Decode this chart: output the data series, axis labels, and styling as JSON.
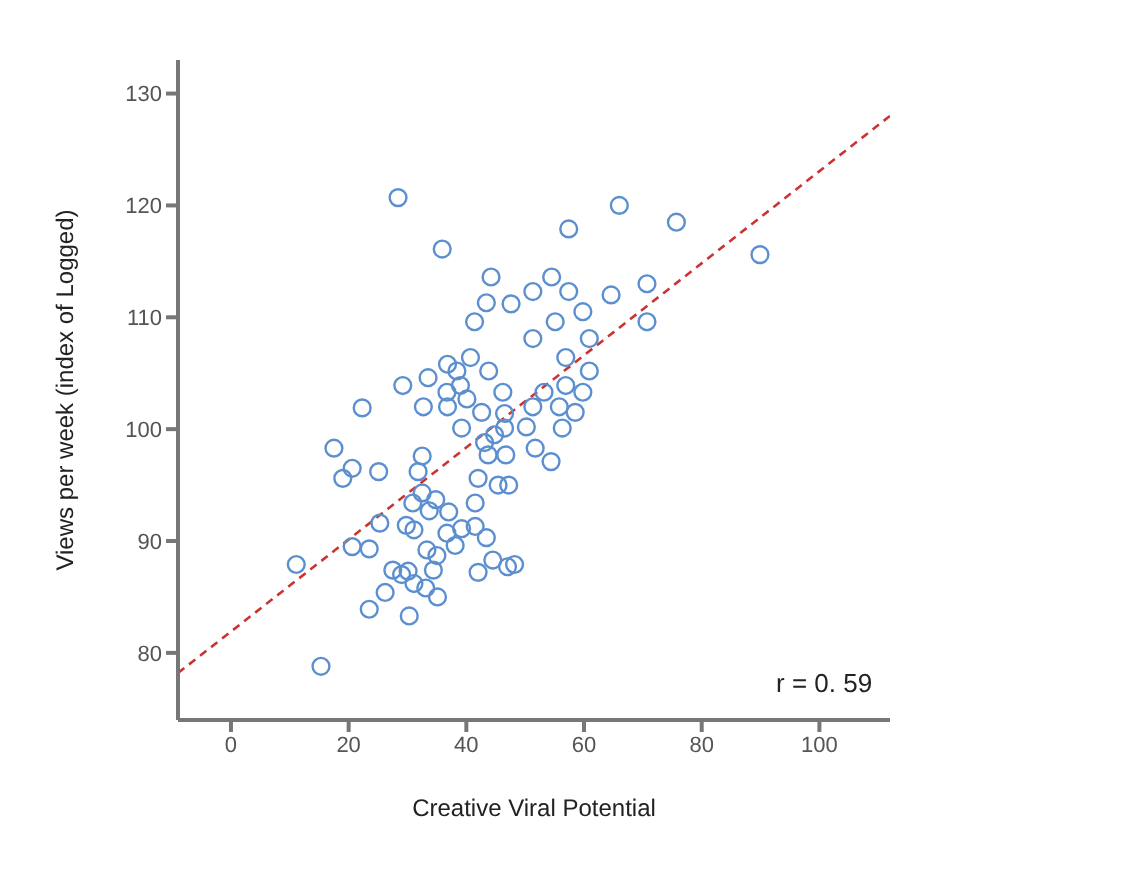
{
  "chart_data": {
    "type": "scatter",
    "xlabel": "Creative Viral Potential",
    "ylabel": "Views per week (index of Logged)",
    "xlim": [
      -9,
      112
    ],
    "ylim": [
      74,
      133
    ],
    "xticks": [
      0,
      20,
      40,
      60,
      80,
      100
    ],
    "yticks": [
      80,
      90,
      100,
      110,
      120,
      130
    ],
    "annotations": [
      "r = 0. 59"
    ],
    "series": [
      {
        "color": "#5b8fd0",
        "marker": "circle",
        "x": [
          28.4,
          35.9,
          44.2,
          43.4,
          47.6,
          51.3,
          54.5,
          57.4,
          57.4,
          66,
          64.6,
          41.4,
          55.1,
          59.8,
          51.3,
          60.9,
          56.9,
          40.7,
          36.8,
          38.4,
          33.5,
          29.2,
          43.8,
          60.9,
          56.9,
          39,
          36.7,
          46.2,
          53.2,
          59.8,
          40.1,
          32.7,
          36.8,
          51.3,
          55.8,
          22.3,
          42.6,
          46.5,
          58.5,
          39.2,
          46.5,
          50.2,
          56.3,
          44.8,
          43.1,
          17.5,
          51.7,
          32.5,
          43.7,
          46.7,
          54.4,
          20.6,
          19,
          25.1,
          31.8,
          42,
          45.4,
          47.2,
          32.5,
          30.9,
          34.8,
          41.5,
          33.7,
          37,
          25.3,
          29.8,
          31.1,
          39.2,
          41.5,
          36.7,
          43.4,
          38.1,
          20.6,
          23.5,
          33.3,
          35,
          11.1,
          44.5,
          47,
          48.2,
          27.5,
          30.1,
          29,
          34.4,
          42,
          31.1,
          33.1,
          26.2,
          35.1,
          23.5,
          30.3,
          15.3,
          75.7,
          89.9,
          70.7,
          70.7
        ],
        "values": [
          120.7,
          116.1,
          113.6,
          111.3,
          111.2,
          112.3,
          113.6,
          117.9,
          112.3,
          120,
          112,
          109.6,
          109.6,
          110.5,
          108.1,
          108.1,
          106.4,
          106.4,
          105.8,
          105.2,
          104.6,
          103.9,
          105.2,
          105.2,
          103.9,
          103.9,
          103.3,
          103.3,
          103.3,
          103.3,
          102.7,
          102,
          102,
          102,
          102,
          101.9,
          101.5,
          101.4,
          101.5,
          100.1,
          100.1,
          100.2,
          100.1,
          99.5,
          98.8,
          98.3,
          98.3,
          97.6,
          97.7,
          97.7,
          97.1,
          96.5,
          95.6,
          96.2,
          96.2,
          95.6,
          95,
          95,
          94.3,
          93.4,
          93.7,
          93.4,
          92.7,
          92.6,
          91.6,
          91.4,
          91,
          91.1,
          91.3,
          90.7,
          90.3,
          89.6,
          89.5,
          89.3,
          89.2,
          88.7,
          87.9,
          88.3,
          87.7,
          87.9,
          87.4,
          87.3,
          87,
          87.4,
          87.2,
          86.2,
          85.8,
          85.4,
          85,
          83.9,
          83.3,
          78.8,
          118.5,
          115.6,
          113,
          109.6
        ]
      },
      {
        "type": "line",
        "color": "#cc3333",
        "line_style": "dashed",
        "marker": "none",
        "x": [
          -9,
          112
        ],
        "values": [
          78.2,
          128
        ]
      }
    ]
  }
}
